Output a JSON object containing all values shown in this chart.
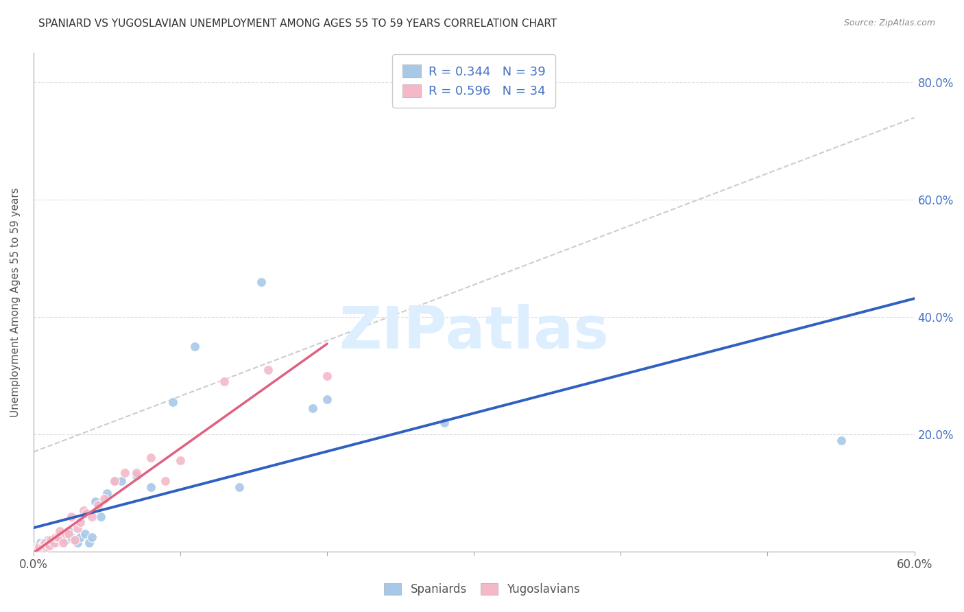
{
  "title": "SPANIARD VS YUGOSLAVIAN UNEMPLOYMENT AMONG AGES 55 TO 59 YEARS CORRELATION CHART",
  "source": "Source: ZipAtlas.com",
  "ylabel": "Unemployment Among Ages 55 to 59 years",
  "legend_bottom": [
    "Spaniards",
    "Yugoslavians"
  ],
  "blue_scatter_color": "#a8c8e8",
  "pink_scatter_color": "#f4b8c8",
  "blue_line_color": "#3060c0",
  "pink_line_color": "#e06080",
  "diag_line_color": "#cccccc",
  "r_blue": 0.344,
  "n_blue": 39,
  "r_pink": 0.596,
  "n_pink": 34,
  "xlim": [
    0.0,
    0.6
  ],
  "ylim": [
    0.0,
    0.85
  ],
  "spaniards_x": [
    0.002,
    0.003,
    0.004,
    0.005,
    0.006,
    0.007,
    0.008,
    0.009,
    0.01,
    0.011,
    0.012,
    0.015,
    0.017,
    0.018,
    0.02,
    0.022,
    0.024,
    0.026,
    0.028,
    0.03,
    0.032,
    0.035,
    0.038,
    0.04,
    0.042,
    0.046,
    0.05,
    0.055,
    0.06,
    0.07,
    0.08,
    0.095,
    0.11,
    0.14,
    0.155,
    0.19,
    0.2,
    0.28,
    0.55
  ],
  "spaniards_y": [
    0.005,
    0.01,
    0.01,
    0.015,
    0.005,
    0.015,
    0.015,
    0.01,
    0.02,
    0.01,
    0.015,
    0.015,
    0.02,
    0.025,
    0.025,
    0.02,
    0.035,
    0.025,
    0.02,
    0.015,
    0.025,
    0.03,
    0.015,
    0.025,
    0.085,
    0.06,
    0.1,
    0.12,
    0.12,
    0.13,
    0.11,
    0.255,
    0.35,
    0.11,
    0.46,
    0.245,
    0.26,
    0.22,
    0.19
  ],
  "yugoslavians_x": [
    0.003,
    0.004,
    0.006,
    0.007,
    0.008,
    0.009,
    0.01,
    0.011,
    0.012,
    0.014,
    0.015,
    0.017,
    0.018,
    0.02,
    0.022,
    0.024,
    0.026,
    0.028,
    0.03,
    0.032,
    0.034,
    0.036,
    0.04,
    0.044,
    0.048,
    0.055,
    0.062,
    0.07,
    0.08,
    0.09,
    0.1,
    0.13,
    0.16,
    0.2
  ],
  "yugoslavians_y": [
    0.005,
    0.008,
    0.01,
    0.015,
    0.015,
    0.008,
    0.012,
    0.01,
    0.02,
    0.015,
    0.025,
    0.025,
    0.035,
    0.015,
    0.03,
    0.03,
    0.06,
    0.02,
    0.04,
    0.05,
    0.07,
    0.065,
    0.06,
    0.08,
    0.09,
    0.12,
    0.135,
    0.135,
    0.16,
    0.12,
    0.155,
    0.29,
    0.31,
    0.3
  ],
  "watermark": "ZIPatlas",
  "watermark_color": "#ddeeff",
  "background_color": "#ffffff",
  "grid_color": "#dddddd"
}
